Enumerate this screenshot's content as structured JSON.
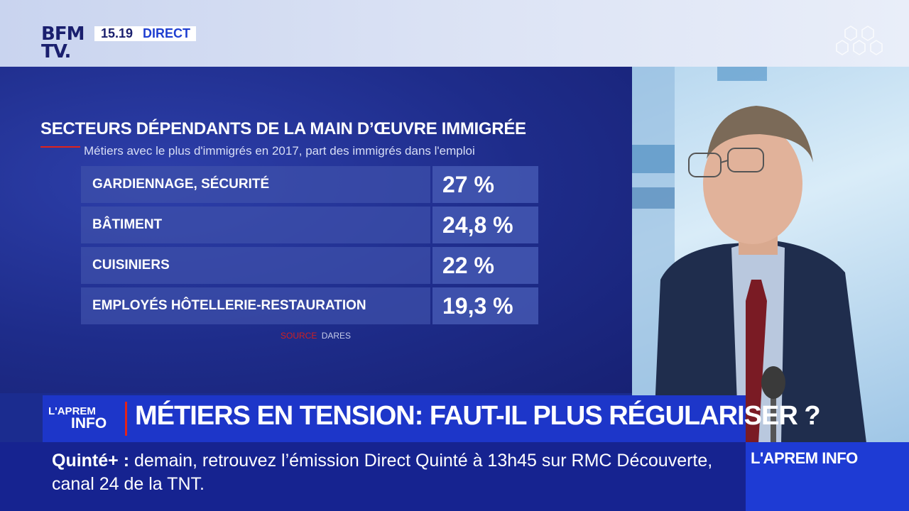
{
  "channel": {
    "logo_line1": "BFM",
    "logo_line2": "TV.",
    "time": "15.19",
    "live_label": "DIRECT"
  },
  "graphic": {
    "title": "SECTEURS DÉPENDANTS DE LA MAIN D’ŒUVRE IMMIGRÉE",
    "subtitle": "Métiers avec le plus d'immigrés en 2017, part des immigrés dans l'emploi",
    "rows": [
      {
        "label": "GARDIENNAGE, SÉCURITÉ",
        "value": "27 %"
      },
      {
        "label": "BÂTIMENT",
        "value": "24,8 %"
      },
      {
        "label": "CUISINIERS",
        "value": "22 %"
      },
      {
        "label": "EMPLOYÉS HÔTELLERIE-RESTAURATION",
        "value": "19,3 %"
      }
    ],
    "source_label": "SOURCE",
    "source_name": "DARES"
  },
  "lower_third": {
    "badge_line1": "L'APREM",
    "badge_line2": "INFO",
    "headline": "MÉTIERS EN TENSION: FAUT-IL PLUS RÉGULARISER ?"
  },
  "ticker": {
    "prefix": "Quinté+ :",
    "text": " demain, retrouvez l’émission Direct Quinté à 13h45 sur RMC Découverte, canal 24 de la TNT.",
    "program": "L'APREM INFO"
  },
  "colors": {
    "brand_blue": "#1d36c9",
    "dark_blue": "#162390",
    "accent_red": "#e2231a"
  }
}
